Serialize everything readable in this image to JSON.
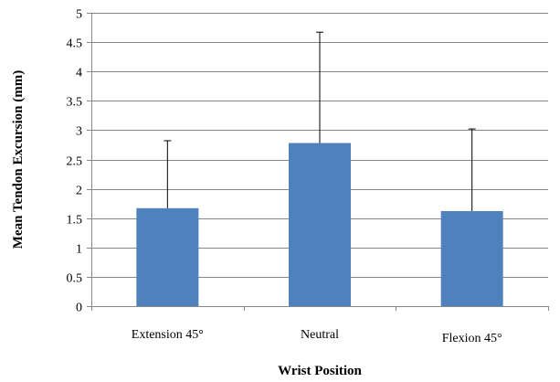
{
  "chart_data": {
    "type": "bar",
    "categories": [
      "Extension 45°",
      "Neutral",
      "Flexion 45°"
    ],
    "values": [
      1.67,
      2.78,
      1.62
    ],
    "error_upper": [
      2.82,
      4.67,
      3.02
    ],
    "xlabel": "Wrist Position",
    "ylabel": "Mean Tendon Excursion (mm)",
    "ylim": [
      0,
      5
    ],
    "yticks": [
      "0",
      "0.5",
      "1",
      "1.5",
      "2",
      "2.5",
      "3",
      "3.5",
      "4",
      "4.5",
      "5"
    ],
    "grid": true,
    "legend": "none",
    "bar_color": "#4f81bd",
    "grid_color": "#878787"
  }
}
